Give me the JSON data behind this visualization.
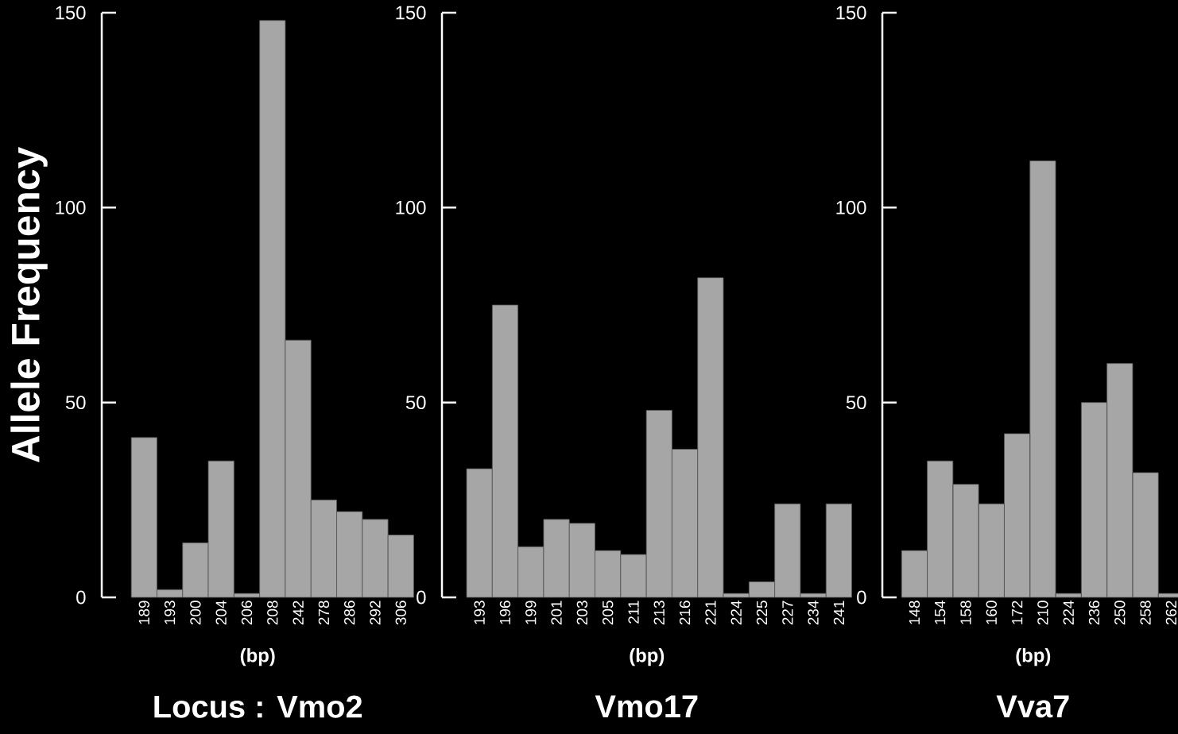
{
  "chart_data": [
    {
      "type": "bar",
      "title": "Locus :  Vmo2",
      "xlabel": "(bp)",
      "ylabel": "Allele Frequency",
      "color": "#a6a6a6",
      "ylim": [
        0,
        150
      ],
      "yticks": [
        0,
        50,
        100,
        150
      ],
      "categories": [
        "189",
        "193",
        "200",
        "204",
        "206",
        "208",
        "242",
        "278",
        "286",
        "292",
        "306"
      ],
      "values": [
        41,
        2,
        14,
        35,
        1,
        148,
        66,
        25,
        22,
        20,
        16
      ]
    },
    {
      "type": "bar",
      "title": "Vmo17",
      "xlabel": "(bp)",
      "color": "#a6a6a6",
      "ylim": [
        0,
        150
      ],
      "yticks": [
        0,
        50,
        100,
        150
      ],
      "categories": [
        "193",
        "196",
        "199",
        "201",
        "203",
        "205",
        "211",
        "213",
        "216",
        "221",
        "224",
        "225",
        "227",
        "234",
        "241"
      ],
      "values": [
        33,
        75,
        13,
        20,
        19,
        12,
        11,
        48,
        38,
        82,
        1,
        4,
        24,
        1,
        24
      ]
    },
    {
      "type": "bar",
      "title": "Vva7",
      "xlabel": "(bp)",
      "color": "#a6a6a6",
      "ylim": [
        0,
        150
      ],
      "yticks": [
        0,
        50,
        100,
        150
      ],
      "categories": [
        "148",
        "154",
        "158",
        "160",
        "172",
        "210",
        "224",
        "236",
        "250",
        "258",
        "262"
      ],
      "values": [
        12,
        35,
        29,
        24,
        42,
        112,
        1,
        50,
        60,
        32,
        1
      ]
    }
  ]
}
